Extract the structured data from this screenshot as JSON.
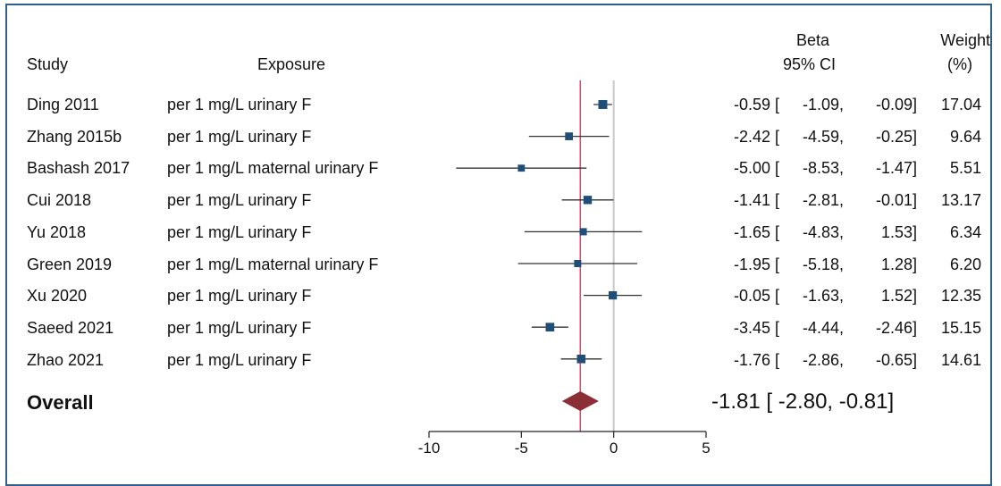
{
  "chart_data": {
    "type": "forest",
    "headers": {
      "study": "Study",
      "exposure": "Exposure",
      "beta": "Beta",
      "ci": "95% CI",
      "weight": "Weight",
      "weight_unit": "(%)"
    },
    "rows": [
      {
        "study": "Ding 2011",
        "exposure": "per 1 mg/L urinary F",
        "beta": -0.59,
        "lo": -1.09,
        "hi": -0.09,
        "weight": 17.04,
        "beta_text": "-0.59 [",
        "lo_text": "-1.09,",
        "hi_text": "-0.09]",
        "weight_text": "17.04"
      },
      {
        "study": "Zhang 2015b",
        "exposure": "per 1 mg/L urinary F",
        "beta": -2.42,
        "lo": -4.59,
        "hi": -0.25,
        "weight": 9.64,
        "beta_text": "-2.42 [",
        "lo_text": "-4.59,",
        "hi_text": "-0.25]",
        "weight_text": "9.64"
      },
      {
        "study": "Bashash 2017",
        "exposure": "per 1 mg/L maternal urinary F",
        "beta": -5.0,
        "lo": -8.53,
        "hi": -1.47,
        "weight": 5.51,
        "beta_text": "-5.00 [",
        "lo_text": "-8.53,",
        "hi_text": "-1.47]",
        "weight_text": "5.51"
      },
      {
        "study": "Cui 2018",
        "exposure": "per 1 mg/L urinary F",
        "beta": -1.41,
        "lo": -2.81,
        "hi": -0.01,
        "weight": 13.17,
        "beta_text": "-1.41 [",
        "lo_text": "-2.81,",
        "hi_text": "-0.01]",
        "weight_text": "13.17"
      },
      {
        "study": "Yu 2018",
        "exposure": "per 1 mg/L urinary F",
        "beta": -1.65,
        "lo": -4.83,
        "hi": 1.53,
        "weight": 6.34,
        "beta_text": "-1.65 [",
        "lo_text": "-4.83,",
        "hi_text": "1.53]",
        "weight_text": "6.34"
      },
      {
        "study": "Green 2019",
        "exposure": "per 1 mg/L maternal urinary F",
        "beta": -1.95,
        "lo": -5.18,
        "hi": 1.28,
        "weight": 6.2,
        "beta_text": "-1.95 [",
        "lo_text": "-5.18,",
        "hi_text": "1.28]",
        "weight_text": "6.20"
      },
      {
        "study": "Xu 2020",
        "exposure": "per 1 mg/L urinary F",
        "beta": -0.05,
        "lo": -1.63,
        "hi": 1.52,
        "weight": 12.35,
        "beta_text": "-0.05 [",
        "lo_text": "-1.63,",
        "hi_text": "1.52]",
        "weight_text": "12.35"
      },
      {
        "study": "Saeed 2021",
        "exposure": "per 1 mg/L urinary F",
        "beta": -3.45,
        "lo": -4.44,
        "hi": -2.46,
        "weight": 15.15,
        "beta_text": "-3.45 [",
        "lo_text": "-4.44,",
        "hi_text": "-2.46]",
        "weight_text": "15.15"
      },
      {
        "study": "Zhao 2021",
        "exposure": "per 1 mg/L urinary F",
        "beta": -1.76,
        "lo": -2.86,
        "hi": -0.65,
        "weight": 14.61,
        "beta_text": "-1.76 [",
        "lo_text": "-2.86,",
        "hi_text": "-0.65]",
        "weight_text": "14.61"
      }
    ],
    "overall": {
      "label": "Overall",
      "beta": -1.81,
      "lo": -2.8,
      "hi": -0.81,
      "text": "-1.81 [ -2.80, -0.81]"
    },
    "xlim": [
      -10,
      5
    ],
    "xticks": [
      -10,
      -5,
      0,
      5
    ],
    "null_line": 0,
    "overall_line": -1.81,
    "colors": {
      "frame": "#2f5f8a",
      "marker": "#1f4e79",
      "ci_line": "#333333",
      "ci_line_light": "#666666",
      "overall_line": "#d05070",
      "null_line": "#c8c8c8",
      "diamond": "#8b2e35"
    }
  }
}
